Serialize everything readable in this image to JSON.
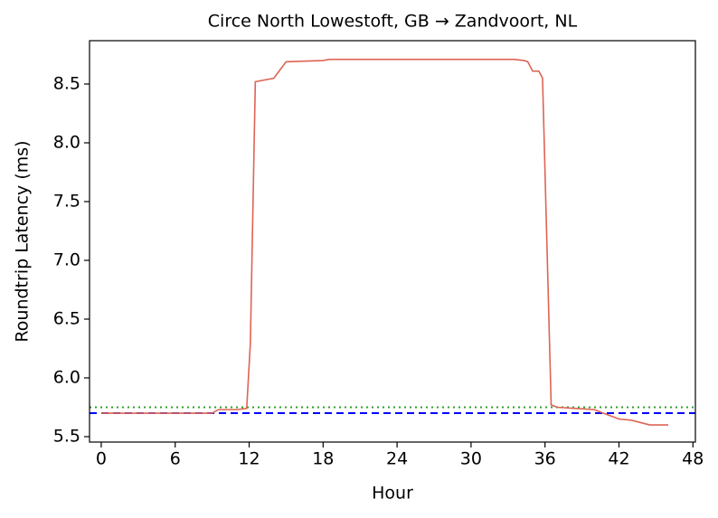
{
  "chart_data": {
    "type": "line",
    "title": "Circe North Lowestoft, GB → Zandvoort, NL",
    "xlabel": "Hour",
    "ylabel": "Roundtrip Latency (ms)",
    "x": [
      0,
      2,
      4,
      6,
      8,
      9,
      9.5,
      11,
      11.8,
      12.1,
      12.5,
      14,
      14.5,
      15,
      18,
      18.5,
      22,
      26,
      30,
      33.5,
      34.3,
      34.6,
      35,
      35.5,
      35.8,
      36.5,
      37,
      40,
      41,
      42,
      43,
      44.5,
      46
    ],
    "series": [
      {
        "name": "Latency",
        "color": "#dd6454",
        "values": [
          5.7,
          5.7,
          5.7,
          5.7,
          5.7,
          5.7,
          5.73,
          5.73,
          5.74,
          6.3,
          8.52,
          8.55,
          8.62,
          8.69,
          8.7,
          8.71,
          8.71,
          8.71,
          8.71,
          8.71,
          8.7,
          8.69,
          8.61,
          8.61,
          8.55,
          5.77,
          5.75,
          5.73,
          5.69,
          5.65,
          5.64,
          5.6,
          5.6
        ]
      }
    ],
    "hlines": [
      {
        "value": 5.7,
        "color": "#0000ff",
        "dash": "8,5"
      },
      {
        "value": 5.75,
        "color": "#2ca02c",
        "dash": "2,4"
      }
    ],
    "xlim": [
      -0.95,
      48.2
    ],
    "ylim": [
      5.454,
      8.869
    ],
    "xticks": [
      0,
      6,
      12,
      18,
      24,
      30,
      36,
      42,
      48
    ],
    "yticks": [
      5.5,
      {
        "value": 6,
        "label": "6.0"
      },
      6.5,
      {
        "value": 7,
        "label": "7.0"
      },
      7.5,
      {
        "value": 8,
        "label": "8.0"
      },
      8.5
    ]
  }
}
